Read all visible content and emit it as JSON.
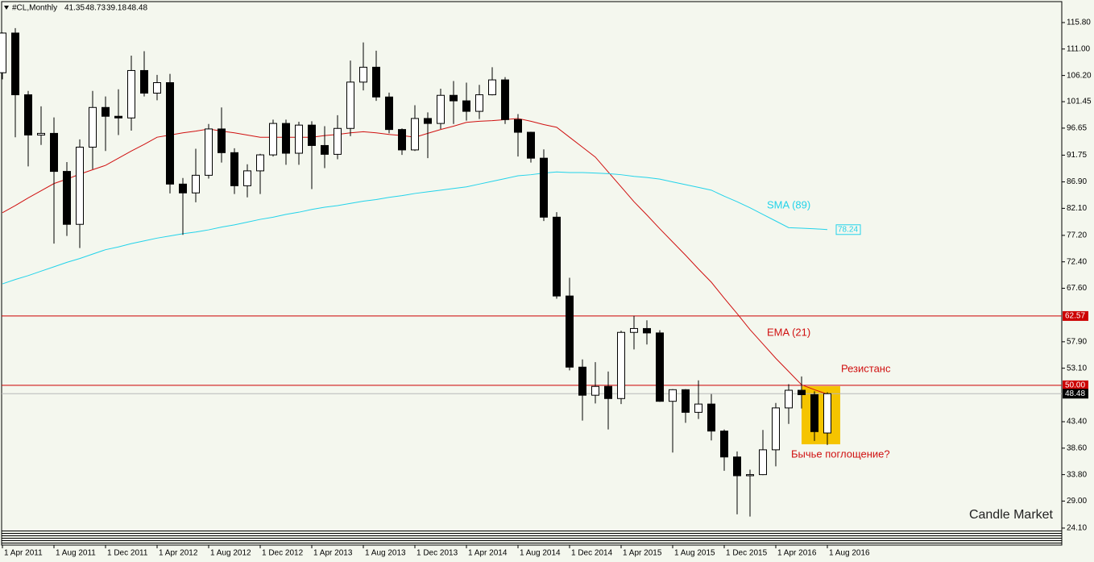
{
  "chart_data": {
    "type": "candlestick",
    "title": "#CL,Monthly",
    "categories": [
      "1 Apr 2011",
      null,
      null,
      null,
      "1 Aug 2011",
      null,
      null,
      null,
      "1 Dec 2011",
      null,
      null,
      null,
      "1 Apr 2012",
      null,
      null,
      null,
      "1 Aug 2012",
      null,
      null,
      null,
      "1 Dec 2012",
      null,
      null,
      null,
      "1 Apr 2013",
      null,
      null,
      null,
      "1 Aug 2013",
      null,
      null,
      null,
      "1 Dec 2013",
      null,
      null,
      null,
      "1 Apr 2014",
      null,
      null,
      null,
      "1 Aug 2014",
      null,
      null,
      null,
      "1 Dec 2014",
      null,
      null,
      null,
      "1 Apr 2015",
      null,
      null,
      null,
      "1 Aug 2015",
      null,
      null,
      null,
      "1 Dec 2015",
      null,
      null,
      null,
      "1 Apr 2016",
      null,
      null,
      null,
      "1 Aug 2016"
    ],
    "open": [
      106.7,
      113.9,
      102.7,
      95.4,
      95.7,
      88.8,
      79.2,
      93.2,
      100.4,
      98.8,
      98.5,
      107.1,
      103.0,
      104.9,
      86.5,
      84.9,
      88.1,
      96.5,
      92.2,
      86.2,
      88.9,
      91.8,
      97.5,
      92.1,
      97.2,
      93.5,
      91.9,
      96.6,
      105.0,
      107.7,
      102.3,
      96.4,
      92.7,
      98.4,
      97.5,
      102.6,
      101.6,
      99.7,
      102.7,
      105.4,
      98.2,
      95.9,
      91.2,
      80.5,
      66.2,
      53.3,
      48.2,
      49.8,
      47.6,
      59.6,
      60.3,
      59.5,
      47.1,
      49.2,
      45.1,
      46.6,
      41.7,
      37.0,
      33.6,
      33.8,
      38.3,
      45.9,
      49.1,
      48.3,
      41.35
    ],
    "high": [
      114.0,
      114.8,
      103.4,
      100.6,
      98.6,
      90.5,
      94.6,
      103.4,
      102.4,
      103.7,
      109.8,
      110.6,
      106.3,
      106.5,
      87.6,
      92.9,
      97.4,
      100.4,
      93.0,
      90.1,
      92.0,
      98.2,
      98.2,
      97.8,
      97.9,
      97.0,
      99.0,
      108.9,
      112.2,
      110.7,
      103.1,
      96.6,
      100.8,
      99.5,
      103.8,
      105.2,
      104.9,
      104.5,
      107.7,
      105.9,
      99.2,
      96.0,
      92.8,
      81.4,
      69.5,
      54.7,
      54.2,
      52.5,
      59.9,
      62.6,
      61.8,
      60.0,
      49.3,
      49.3,
      50.9,
      48.4,
      42.0,
      38.0,
      34.7,
      41.9,
      46.8,
      50.2,
      51.6,
      48.9,
      48.73
    ],
    "low": [
      105.5,
      95.0,
      89.7,
      93.6,
      75.7,
      77.1,
      74.9,
      89.2,
      92.5,
      95.4,
      96.2,
      102.4,
      101.7,
      84.8,
      77.3,
      83.2,
      87.5,
      90.4,
      84.7,
      84.1,
      84.7,
      91.5,
      90.0,
      90.0,
      85.6,
      89.4,
      91.0,
      95.2,
      103.5,
      101.6,
      95.7,
      91.8,
      92.5,
      91.2,
      96.5,
      97.4,
      98.0,
      98.3,
      102.6,
      97.4,
      91.5,
      90.4,
      79.8,
      65.7,
      52.7,
      43.6,
      46.7,
      42.0,
      46.6,
      56.5,
      57.4,
      47.0,
      37.8,
      43.2,
      43.9,
      40.0,
      34.5,
      26.6,
      26.2,
      33.7,
      35.3,
      43.0,
      45.8,
      39.9,
      39.18
    ],
    "close": [
      113.9,
      102.7,
      95.4,
      95.7,
      88.8,
      79.2,
      93.2,
      100.4,
      98.8,
      98.5,
      107.1,
      103.0,
      104.9,
      86.5,
      84.9,
      88.1,
      96.5,
      92.2,
      86.2,
      88.9,
      91.8,
      97.5,
      92.1,
      97.2,
      93.5,
      91.9,
      96.6,
      105.0,
      107.7,
      102.3,
      96.4,
      92.7,
      98.4,
      97.5,
      102.6,
      101.6,
      99.7,
      102.7,
      105.4,
      98.2,
      95.9,
      91.2,
      80.5,
      66.2,
      53.3,
      48.2,
      49.8,
      47.6,
      59.6,
      60.3,
      59.5,
      47.1,
      49.2,
      45.1,
      46.6,
      41.7,
      37.0,
      33.6,
      33.8,
      38.3,
      45.9,
      49.1,
      48.3,
      41.6,
      48.48
    ],
    "series": [
      {
        "name": "EMA (21)",
        "color": "#d01010",
        "values": [
          81.3,
          82.6,
          84.0,
          85.3,
          86.6,
          87.4,
          88.3,
          89.1,
          89.9,
          91.2,
          92.5,
          93.7,
          95.0,
          95.4,
          95.8,
          96.1,
          96.5,
          96.1,
          95.8,
          95.4,
          95.0,
          95.0,
          95.0,
          95.0,
          95.0,
          95.3,
          95.5,
          95.8,
          96.0,
          95.8,
          95.5,
          95.3,
          95.0,
          95.7,
          96.4,
          97.0,
          97.7,
          97.9,
          98.0,
          98.2,
          98.4,
          97.9,
          97.3,
          96.8,
          95.0,
          93.2,
          91.4,
          88.7,
          86.0,
          83.3,
          80.9,
          78.4,
          76.0,
          73.6,
          71.1,
          68.7,
          65.8,
          63.0,
          60.1,
          57.5,
          54.9,
          52.5,
          50.1,
          49.2,
          48.4
        ]
      },
      {
        "name": "SMA (89)",
        "color": "#22d3ea",
        "values": [
          68.4,
          69.2,
          69.9,
          70.7,
          71.5,
          72.3,
          73.0,
          73.8,
          74.6,
          75.1,
          75.7,
          76.2,
          76.7,
          77.1,
          77.5,
          77.8,
          78.2,
          78.7,
          79.1,
          79.6,
          80.1,
          80.5,
          81.0,
          81.4,
          81.9,
          82.3,
          82.6,
          83.0,
          83.4,
          83.7,
          84.1,
          84.4,
          84.8,
          85.1,
          85.4,
          85.7,
          86.0,
          86.5,
          87.0,
          87.5,
          88.0,
          88.2,
          88.5,
          88.7,
          88.6,
          88.6,
          88.5,
          88.4,
          88.2,
          87.9,
          87.7,
          87.4,
          86.9,
          86.4,
          85.9,
          85.4,
          84.3,
          83.3,
          82.2,
          81.0,
          79.8,
          78.6,
          78.5,
          78.4,
          78.24
        ]
      }
    ],
    "hlines": [
      {
        "value": 62.57,
        "color": "#cc0000"
      },
      {
        "value": 50,
        "label": "50.00",
        "color": "#cc0000"
      }
    ],
    "ylim": [
      23.8,
      119.6
    ],
    "yticks": [
      {
        "value": 115.8,
        "label": "115.80"
      },
      {
        "value": 111,
        "label": "111.00"
      },
      {
        "value": 106.2,
        "label": "106.20"
      },
      101.45,
      96.65,
      91.75,
      {
        "value": 86.9,
        "label": "86.90"
      },
      {
        "value": 82.1,
        "label": "82.10"
      },
      {
        "value": 77.2,
        "label": "77.20"
      },
      {
        "value": 72.4,
        "label": "72.40"
      },
      {
        "value": 67.6,
        "label": "67.60"
      },
      {
        "value": 57.9,
        "label": "57.90"
      },
      {
        "value": 53.1,
        "label": "53.10"
      },
      {
        "value": 43.4,
        "label": "43.40"
      },
      {
        "value": 38.6,
        "label": "38.60"
      },
      {
        "value": 33.8,
        "label": "33.80"
      },
      {
        "value": 29,
        "label": "29.00"
      },
      {
        "value": 24.1,
        "label": "24.10"
      }
    ],
    "annotations": [
      "Резистанс",
      "Бычье поглощение?"
    ],
    "watermark": "Candle Market"
  }
}
